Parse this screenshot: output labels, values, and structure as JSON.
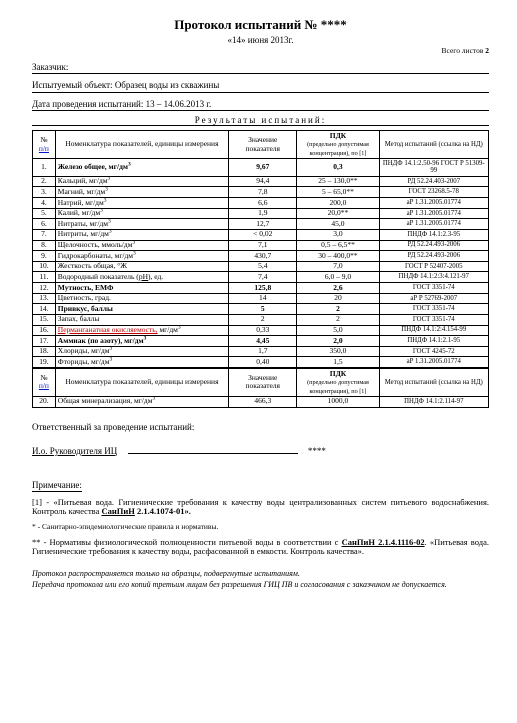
{
  "title": "Протокол испытаний № ****",
  "date_line": "«14» июня 2013г.",
  "sheets_label": "Всего листов",
  "sheets_n": "2",
  "customer_label": "Заказчик:",
  "object_label": "Испытуемый объект:",
  "object_value": "Образец воды из скважины",
  "period_label": "Дата проведения испытаний:",
  "period_value": "13 – 14.06.2013 г.",
  "results_title": "Результаты испытаний:",
  "headers": {
    "n": "№",
    "pp": "п/п",
    "name": "Номенклатура показателей, единицы измерения",
    "val": "Значение показателя",
    "pdk": "ПДК",
    "pdk_sub": "(предельно допустимая концентрация), по [1]",
    "method": "Метод испытаний (ссылка на НД)"
  },
  "rows1": [
    {
      "n": "1.",
      "name": "Железо общее, мг/дм³",
      "val": "9,67",
      "pdk": "0,3",
      "method": "ПНДФ 14.1:2.50-96 ГОСТ Р 51309-99",
      "bold": true
    },
    {
      "n": "2.",
      "name": "Кальций, мг/дм³",
      "val": "94,4",
      "pdk": "25 – 130,0**",
      "method": "РД 52.24.403-2007"
    },
    {
      "n": "3.",
      "name": "Магний, мг/дм³",
      "val": "7,8",
      "pdk": "5 – 65,0**",
      "method": "ГОСТ 23268.5-78"
    },
    {
      "n": "4.",
      "name": "Натрий, мг/дм³",
      "val": "6,6",
      "pdk": "200,0",
      "method": "аР 1.31.2005.01774"
    },
    {
      "n": "5.",
      "name": "Калий, мг/дм³",
      "val": "1,9",
      "pdk": "20,0**",
      "method": "аР 1.31.2005.01774"
    },
    {
      "n": "6.",
      "name": "Нитраты, мг/дм³",
      "val": "12,7",
      "pdk": "45,0",
      "method": "аР 1.31.2005.01774"
    },
    {
      "n": "7.",
      "name": "Нитриты, мг/дм³",
      "val": "< 0,02",
      "pdk": "3,0",
      "method": "ПНДФ 14.1:2.3-95"
    },
    {
      "n": "8.",
      "name": "Щелочность, ммоль/дм³",
      "val": "7,1",
      "pdk": "0,5 – 6,5**",
      "method": "РД 52.24.493-2006"
    },
    {
      "n": "9.",
      "name": "Гидрокарбонаты, мг/дм³",
      "val": "430,7",
      "pdk": "30 – 400,0**",
      "method": "РД 52.24.493-2006"
    },
    {
      "n": "10.",
      "name": "Жесткость общая, °Ж",
      "val": "5,4",
      "pdk": "7,0",
      "method": "ГОСТ Р 52407-2005"
    },
    {
      "n": "11.",
      "name": "Водородный показатель (рН), ед.",
      "val": "7,4",
      "pdk": "6,0 – 9,0",
      "method": "ПНДФ 14.1:2:3:4.121-97",
      "ph": true
    },
    {
      "n": "12.",
      "name": "Мутность, ЕМФ",
      "val": "125,8",
      "pdk": "2,6",
      "method": "ГОСТ 3351-74",
      "bold": true
    },
    {
      "n": "13.",
      "name": "Цветность, град.",
      "val": "14",
      "pdk": "20",
      "method": "аР Р 52769-2007"
    },
    {
      "n": "14.",
      "name": "Привкус, баллы",
      "val": "5",
      "pdk": "2",
      "method": "ГОСТ 3351-74",
      "bold": true
    },
    {
      "n": "15.",
      "name": "Запах, баллы",
      "val": "2",
      "pdk": "2",
      "method": "ГОСТ 3351-74"
    },
    {
      "n": "16.",
      "name": "Перманганатная окисляемость, мг/дм³",
      "val": "0,33",
      "pdk": "5,0",
      "method": "ПНДФ 14.1:2:4.154-99",
      "red": true
    },
    {
      "n": "17.",
      "name": "Аммиак (по азоту), мг/дм³",
      "val": "4,45",
      "pdk": "2,0",
      "method": "ПНДФ 14.1:2.1-95",
      "bold": true
    },
    {
      "n": "18.",
      "name": "Хлориды, мг/дм³",
      "val": "1,7",
      "pdk": "350,0",
      "method": "ГОСТ 4245-72"
    },
    {
      "n": "19.",
      "name": "Фториды, мг/дм³",
      "val": "0,40",
      "pdk": "1,5",
      "method": "аР 1.31.2005.01774"
    }
  ],
  "rows2": [
    {
      "n": "20.",
      "name": "Общая минерализация, мг/дм³",
      "val": "466,3",
      "pdk": "1000,0",
      "method": "ПНДФ 14.1:2.114-97"
    }
  ],
  "resp_label": "Ответственный за проведение испытаний:",
  "sig_role": "И.о. Руководителя ИЦ",
  "sig_stars": "****",
  "note_title": "Примечание:",
  "note1_a": "[1] - «Питьевая вода. Гигиенические требования к качеству воды централизованных систем питьевого водоснабжения. Контроль качества ",
  "note1_b": "СанПиН",
  "note1_c": " 2.1.4.1074-01».",
  "note_star": "* - Санитарно-эпидемиологические правила и нормативы.",
  "note2_a": "** - Нормативы физиологической полноценности питьевой воды в соответствии с ",
  "note2_b": "СанПиН 2.1.4.1116-02",
  "note2_c": ". «Питьевая вода. Гигиенические требования к качеству воды, расфасованной в емкости. Контроль качества».",
  "footer1": "Протокол распространяется только на образцы, подвергнутые испытаниям.",
  "footer2": "Передача протокола или его копий третьим лицам без разрешения ГИЦ ПВ и согласования с заказчиком не допускается."
}
